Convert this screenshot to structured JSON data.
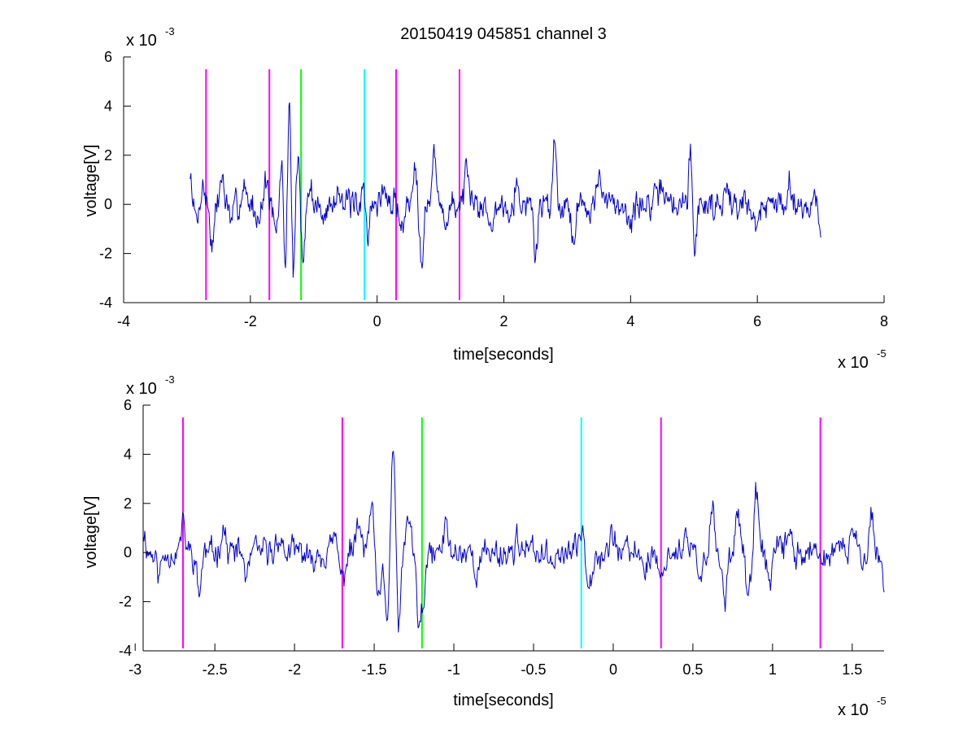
{
  "title": "20150419 045851 channel 3",
  "colors": {
    "signal": "#0000cc",
    "magenta": "#ff00ff",
    "green": "#00ff00",
    "cyan": "#00ffff",
    "axis": "#000000"
  },
  "chart_data": [
    {
      "type": "line",
      "title": "20150419 045851 channel 3",
      "xlabel": "time[seconds]",
      "ylabel": "voltage[V]",
      "x_exponent": {
        "base": "x 10",
        "power": "-5"
      },
      "y_exponent": {
        "base": "x 10",
        "power": "-3"
      },
      "xlim": [
        -4,
        8
      ],
      "ylim": [
        -4,
        6
      ],
      "xticks": [
        -4,
        -2,
        0,
        2,
        4,
        6,
        8
      ],
      "yticks": [
        -4,
        -2,
        0,
        2,
        4,
        6
      ],
      "xtick_labels": [
        "-4",
        "-2",
        "0",
        "2",
        "4",
        "6",
        "8"
      ],
      "ytick_labels": [
        "-4",
        "-2",
        "0",
        "2",
        "4",
        "6"
      ],
      "grid": false,
      "signal_range": [
        -2.95,
        7.0
      ],
      "seed": 7,
      "markers": [
        {
          "x": -2.7,
          "color": "magenta"
        },
        {
          "x": -1.7,
          "color": "magenta"
        },
        {
          "x": -1.2,
          "color": "green"
        },
        {
          "x": -0.2,
          "color": "cyan"
        },
        {
          "x": 0.3,
          "color": "magenta"
        },
        {
          "x": 1.3,
          "color": "magenta"
        }
      ],
      "marker_range": [
        -3.9,
        5.5
      ],
      "signal_points": [
        [
          -2.95,
          1.2
        ],
        [
          -2.85,
          -0.8
        ],
        [
          -2.75,
          0.9
        ],
        [
          -2.6,
          -1.9
        ],
        [
          -2.45,
          1.3
        ],
        [
          -2.3,
          -0.9
        ],
        [
          -2.1,
          0.9
        ],
        [
          -1.9,
          -0.7
        ],
        [
          -1.75,
          1.1
        ],
        [
          -1.6,
          -1.6
        ],
        [
          -1.5,
          1.9
        ],
        [
          -1.45,
          -3.0
        ],
        [
          -1.38,
          5.0
        ],
        [
          -1.33,
          -3.5
        ],
        [
          -1.25,
          2.2
        ],
        [
          -1.18,
          -2.4
        ],
        [
          -1.05,
          0.8
        ],
        [
          -0.85,
          -0.9
        ],
        [
          -0.6,
          1.1
        ],
        [
          -0.3,
          -0.6
        ],
        [
          -0.2,
          1.2
        ],
        [
          -0.15,
          -1.5
        ],
        [
          0.1,
          0.8
        ],
        [
          0.4,
          -1.1
        ],
        [
          0.6,
          2.1
        ],
        [
          0.7,
          -2.3
        ],
        [
          0.9,
          2.2
        ],
        [
          1.1,
          -0.9
        ],
        [
          1.4,
          1.2
        ],
        [
          1.8,
          -1.4
        ],
        [
          2.2,
          1.0
        ],
        [
          2.5,
          -2.2
        ],
        [
          2.8,
          2.7
        ],
        [
          3.1,
          -1.5
        ],
        [
          3.5,
          1.3
        ],
        [
          4.0,
          -1.1
        ],
        [
          4.5,
          1.2
        ],
        [
          4.95,
          2.6
        ],
        [
          5.0,
          -2.2
        ],
        [
          5.5,
          1.1
        ],
        [
          6.0,
          -1.3
        ],
        [
          6.5,
          1.3
        ],
        [
          7.0,
          -0.8
        ]
      ]
    },
    {
      "type": "line",
      "xlabel": "time[seconds]",
      "ylabel": "voltage[V]",
      "x_exponent": {
        "base": "x 10",
        "power": "-5"
      },
      "y_exponent": {
        "base": "x 10",
        "power": "-3"
      },
      "xlim": [
        -2.95,
        1.7
      ],
      "ylim": [
        -4,
        6
      ],
      "xticks": [
        -3,
        -2.5,
        -2,
        -1.5,
        -1,
        -0.5,
        0,
        0.5,
        1,
        1.5
      ],
      "yticks": [
        -4,
        -2,
        0,
        2,
        4,
        6
      ],
      "xtick_labels": [
        "-3",
        "-2.5",
        "-2",
        "-1.5",
        "-1",
        "-0.5",
        "0",
        "0.5",
        "1",
        "1.5"
      ],
      "ytick_labels": [
        "-4",
        "-2",
        "0",
        "2",
        "4",
        "6"
      ],
      "grid": false,
      "signal_range": [
        -2.95,
        1.7
      ],
      "seed": 11,
      "markers": [
        {
          "x": -2.7,
          "color": "magenta"
        },
        {
          "x": -1.7,
          "color": "magenta"
        },
        {
          "x": -1.2,
          "color": "green"
        },
        {
          "x": -0.2,
          "color": "cyan"
        },
        {
          "x": 0.3,
          "color": "magenta"
        },
        {
          "x": 1.3,
          "color": "magenta"
        }
      ],
      "marker_range": [
        -3.9,
        5.5
      ],
      "signal_points": [
        [
          -2.95,
          1.1
        ],
        [
          -2.85,
          -1.0
        ],
        [
          -2.7,
          1.2
        ],
        [
          -2.6,
          -1.8
        ],
        [
          -2.45,
          1.3
        ],
        [
          -2.3,
          -1.2
        ],
        [
          -2.1,
          0.8
        ],
        [
          -1.9,
          -0.7
        ],
        [
          -1.75,
          0.6
        ],
        [
          -1.7,
          -1.4
        ],
        [
          -1.6,
          1.3
        ],
        [
          -1.52,
          1.9
        ],
        [
          -1.47,
          -2.5
        ],
        [
          -1.42,
          -3.0
        ],
        [
          -1.38,
          5.0
        ],
        [
          -1.35,
          -3.5
        ],
        [
          -1.28,
          1.5
        ],
        [
          -1.22,
          -3.1
        ],
        [
          -1.19,
          -2.3
        ],
        [
          -1.05,
          1.2
        ],
        [
          -0.85,
          -1.0
        ],
        [
          -0.6,
          0.7
        ],
        [
          -0.4,
          -0.6
        ],
        [
          -0.2,
          1.1
        ],
        [
          -0.15,
          -1.3
        ],
        [
          0.0,
          0.9
        ],
        [
          0.2,
          -0.8
        ],
        [
          0.3,
          -1.4
        ],
        [
          0.45,
          0.6
        ],
        [
          0.55,
          -1.6
        ],
        [
          0.62,
          2.1
        ],
        [
          0.7,
          -2.2
        ],
        [
          0.78,
          2.2
        ],
        [
          0.85,
          -2.1
        ],
        [
          0.9,
          2.5
        ],
        [
          0.98,
          -1.4
        ],
        [
          1.1,
          1.0
        ],
        [
          1.3,
          -0.6
        ],
        [
          1.5,
          1.0
        ],
        [
          1.62,
          1.7
        ],
        [
          1.7,
          -1.4
        ]
      ]
    }
  ]
}
